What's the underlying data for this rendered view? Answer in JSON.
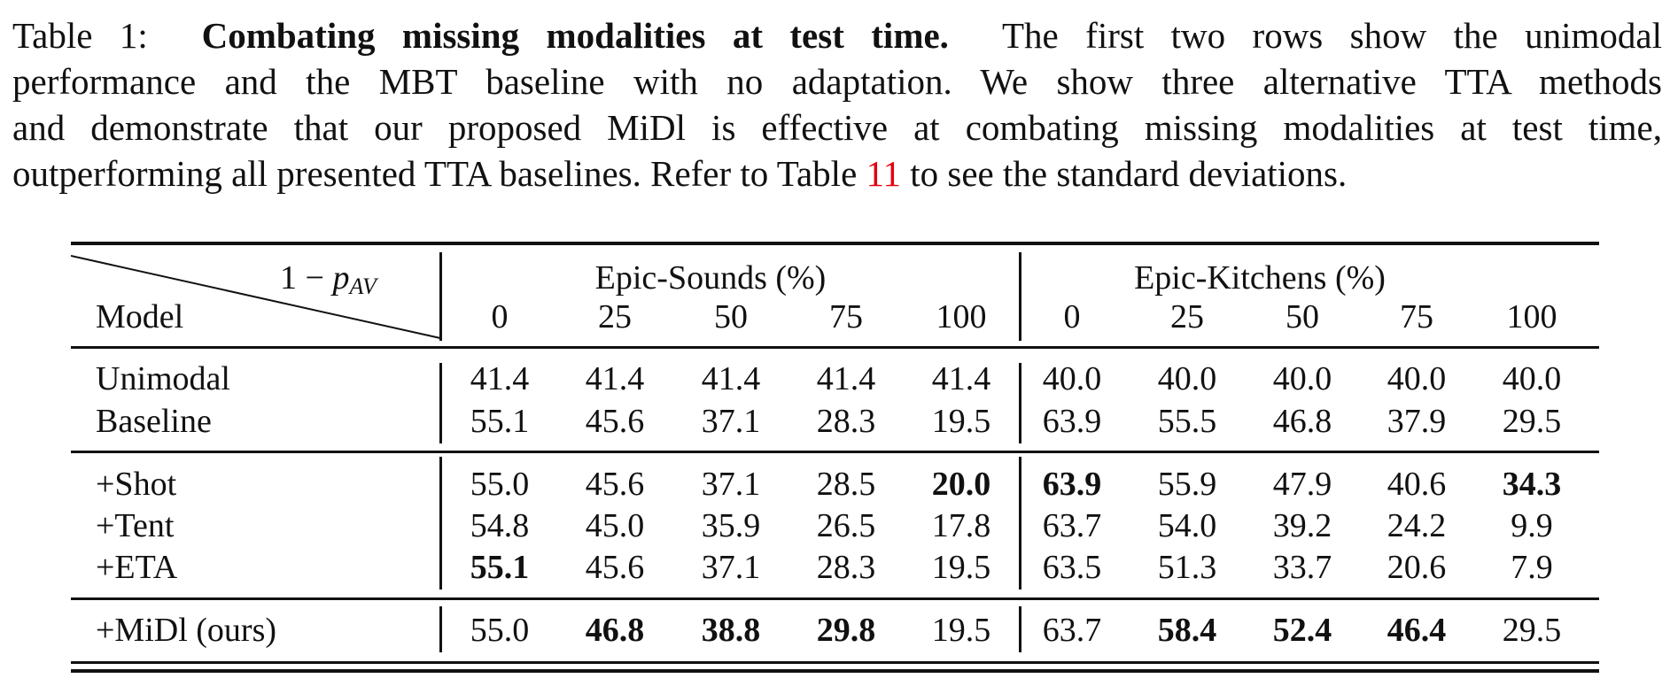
{
  "caption": {
    "prefix": "Table 1:",
    "title": "Combating missing modalities at test time.",
    "line1_rest": "The first two rows show the unimodal",
    "line2": "performance and the MBT baseline with no adaptation. We show three alternative TTA methods",
    "line3": "and demonstrate that our proposed MiDl is effective at combating missing modalities at test time,",
    "line4_pre": "outperforming all presented TTA baselines. Refer to Table",
    "line4_ref": "11",
    "line4_post": "to see the standard deviations."
  },
  "table": {
    "diag_top_prefix": "1 − ",
    "diag_top_var": "p",
    "diag_top_sub": "AV",
    "model_header": "Model",
    "groups": [
      "Epic-Sounds (%)",
      "Epic-Kitchens (%)"
    ],
    "columns": [
      "0",
      "25",
      "50",
      "75",
      "100",
      "0",
      "25",
      "50",
      "75",
      "100"
    ],
    "rows": [
      {
        "model": "Unimodal",
        "values": [
          "41.4",
          "41.4",
          "41.4",
          "41.4",
          "41.4",
          "40.0",
          "40.0",
          "40.0",
          "40.0",
          "40.0"
        ],
        "bold": []
      },
      {
        "model": "Baseline",
        "values": [
          "55.1",
          "45.6",
          "37.1",
          "28.3",
          "19.5",
          "63.9",
          "55.5",
          "46.8",
          "37.9",
          "29.5"
        ],
        "bold": []
      },
      {
        "model": "+Shot",
        "values": [
          "55.0",
          "45.6",
          "37.1",
          "28.5",
          "20.0",
          "63.9",
          "55.9",
          "47.9",
          "40.6",
          "34.3"
        ],
        "bold": [
          4,
          5,
          9
        ]
      },
      {
        "model": "+Tent",
        "values": [
          "54.8",
          "45.0",
          "35.9",
          "26.5",
          "17.8",
          "63.7",
          "54.0",
          "39.2",
          "24.2",
          "9.9"
        ],
        "bold": []
      },
      {
        "model": "+ETA",
        "values": [
          "55.1",
          "45.6",
          "37.1",
          "28.3",
          "19.5",
          "63.5",
          "51.3",
          "33.7",
          "20.6",
          "7.9"
        ],
        "bold": [
          0
        ]
      },
      {
        "model": "+MiDl (ours)",
        "values": [
          "55.0",
          "46.8",
          "38.8",
          "29.8",
          "19.5",
          "63.7",
          "58.4",
          "52.4",
          "46.4",
          "29.5"
        ],
        "bold": [
          1,
          2,
          3,
          6,
          7,
          8
        ]
      }
    ]
  }
}
